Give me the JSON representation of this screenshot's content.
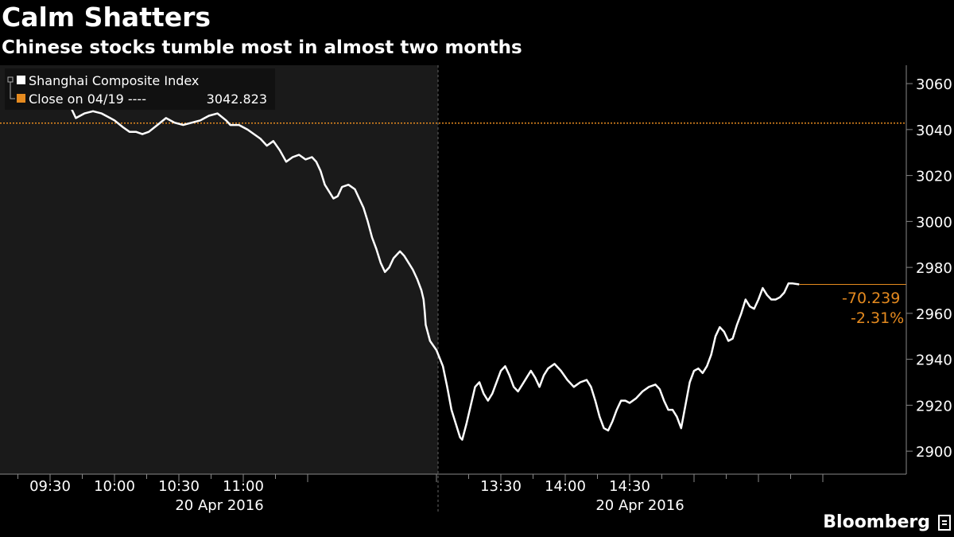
{
  "title": "Calm Shatters",
  "subtitle": "Chinese stocks tumble most in almost two months",
  "brand": "Bloomberg",
  "colors": {
    "background": "#000000",
    "morning_panel": "#1a1a1a",
    "line": "#ffffff",
    "reference": "#e58a1f",
    "axis_text": "#ffffff"
  },
  "chart_data": {
    "type": "line",
    "legend": [
      {
        "label": "Shanghai Composite Index",
        "value": "",
        "color": "#ffffff"
      },
      {
        "label": "Close on 04/19 ----",
        "value": "3042.823",
        "color": "#e58a1f"
      }
    ],
    "reference_line": {
      "label": "Close on 04/19",
      "value": 3042.823
    },
    "ylim": [
      2890,
      3068
    ],
    "yticks": [
      2900,
      2920,
      2940,
      2960,
      2980,
      3000,
      3020,
      3040,
      3060
    ],
    "xticks_morning": [
      "09:30",
      "10:00",
      "10:30",
      "11:00"
    ],
    "xticks_afternoon": [
      "13:30",
      "14:00",
      "14:30"
    ],
    "date_labels": [
      "20 Apr 2016",
      "20 Apr 2016"
    ],
    "change_labels": [
      "-70.239",
      "-2.31%"
    ],
    "last_value": 2972.6,
    "x_axis_note": "minutes since 09:30; lunch break 11:30-13:00 removed",
    "series": [
      {
        "name": "Shanghai Composite Index",
        "points": [
          [
            0,
            3052
          ],
          [
            3,
            3052
          ],
          [
            4,
            3053
          ],
          [
            8,
            3051
          ],
          [
            10,
            3049
          ],
          [
            12,
            3045
          ],
          [
            16,
            3047
          ],
          [
            20,
            3048
          ],
          [
            24,
            3047
          ],
          [
            28,
            3045
          ],
          [
            30,
            3044
          ],
          [
            34,
            3041
          ],
          [
            37,
            3039
          ],
          [
            40,
            3039
          ],
          [
            43,
            3038
          ],
          [
            46,
            3039
          ],
          [
            50,
            3042
          ],
          [
            54,
            3045
          ],
          [
            58,
            3043
          ],
          [
            62,
            3042
          ],
          [
            66,
            3043
          ],
          [
            70,
            3044
          ],
          [
            74,
            3046
          ],
          [
            78,
            3047
          ],
          [
            82,
            3044
          ],
          [
            84,
            3042
          ],
          [
            88,
            3042
          ],
          [
            92,
            3040
          ],
          [
            95,
            3038
          ],
          [
            98,
            3036
          ],
          [
            101,
            3033
          ],
          [
            104,
            3035
          ],
          [
            107,
            3031
          ],
          [
            110,
            3026
          ],
          [
            113,
            3028
          ],
          [
            116,
            3029
          ],
          [
            119,
            3027
          ],
          [
            122,
            3028
          ],
          [
            124,
            3026
          ],
          [
            126,
            3022
          ],
          [
            128,
            3016
          ],
          [
            130,
            3013
          ],
          [
            132,
            3010
          ],
          [
            134,
            3011
          ],
          [
            136,
            3015
          ],
          [
            139,
            3016
          ],
          [
            142,
            3014
          ],
          [
            144,
            3010
          ],
          [
            146,
            3006
          ],
          [
            148,
            3000
          ],
          [
            150,
            2993
          ],
          [
            152,
            2988
          ],
          [
            154,
            2982
          ],
          [
            156,
            2978
          ],
          [
            158,
            2980
          ],
          [
            160,
            2984
          ],
          [
            163,
            2987
          ],
          [
            165,
            2985
          ],
          [
            167,
            2982
          ],
          [
            169,
            2979
          ],
          [
            171,
            2975
          ],
          [
            173,
            2970
          ],
          [
            174,
            2966
          ],
          [
            174.5,
            2961
          ],
          [
            175,
            2955
          ],
          [
            177,
            2948
          ],
          [
            180,
            2944
          ],
          [
            183,
            2937
          ],
          [
            185,
            2928
          ],
          [
            187,
            2918
          ],
          [
            189,
            2912
          ],
          [
            191,
            2906
          ],
          [
            192,
            2905
          ],
          [
            194,
            2912
          ],
          [
            196,
            2920
          ],
          [
            198,
            2928
          ],
          [
            200,
            2930
          ],
          [
            202,
            2925
          ],
          [
            204,
            2922
          ],
          [
            206,
            2925
          ],
          [
            208,
            2930
          ],
          [
            210,
            2935
          ],
          [
            212,
            2937
          ],
          [
            214,
            2933
          ],
          [
            216,
            2928
          ],
          [
            218,
            2926
          ],
          [
            220,
            2929
          ],
          [
            222,
            2932
          ],
          [
            224,
            2935
          ],
          [
            226,
            2932
          ],
          [
            228,
            2928
          ],
          [
            230,
            2933
          ],
          [
            232,
            2936
          ],
          [
            235,
            2938
          ],
          [
            238,
            2935
          ],
          [
            241,
            2931
          ],
          [
            244,
            2928
          ],
          [
            247,
            2930
          ],
          [
            250,
            2931
          ],
          [
            252,
            2928
          ],
          [
            254,
            2922
          ],
          [
            256,
            2915
          ],
          [
            258,
            2910
          ],
          [
            260,
            2909
          ],
          [
            262,
            2913
          ],
          [
            264,
            2918
          ],
          [
            266,
            2922
          ],
          [
            268,
            2922
          ],
          [
            270,
            2921
          ],
          [
            273,
            2923
          ],
          [
            276,
            2926
          ],
          [
            279,
            2928
          ],
          [
            282,
            2929
          ],
          [
            284,
            2927
          ],
          [
            286,
            2922
          ],
          [
            288,
            2918
          ],
          [
            290,
            2918
          ],
          [
            292,
            2915
          ],
          [
            294,
            2910
          ],
          [
            296,
            2920
          ],
          [
            298,
            2930
          ],
          [
            300,
            2935
          ],
          [
            302,
            2936
          ],
          [
            304,
            2934
          ],
          [
            306,
            2937
          ],
          [
            308,
            2942
          ],
          [
            310,
            2950
          ],
          [
            312,
            2954
          ],
          [
            314,
            2952
          ],
          [
            316,
            2948
          ],
          [
            318,
            2949
          ],
          [
            320,
            2955
          ],
          [
            322,
            2960
          ],
          [
            324,
            2966
          ],
          [
            326,
            2963
          ],
          [
            328,
            2962
          ],
          [
            330,
            2966
          ],
          [
            332,
            2971
          ],
          [
            334,
            2968
          ],
          [
            336,
            2966
          ],
          [
            338,
            2966
          ],
          [
            340,
            2967
          ],
          [
            342,
            2969
          ],
          [
            344,
            2973
          ],
          [
            346,
            2973
          ],
          [
            349,
            2972.6
          ]
        ]
      }
    ]
  }
}
